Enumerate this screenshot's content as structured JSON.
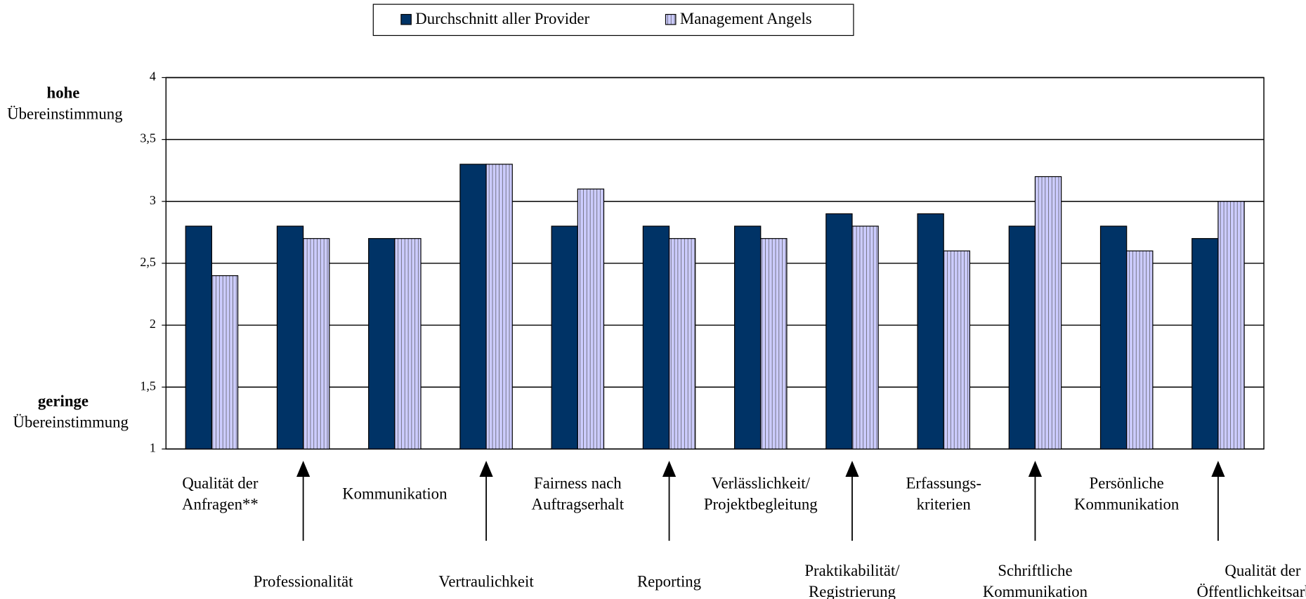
{
  "chart_data": {
    "type": "bar",
    "axis_annotations": [
      [
        "hohe",
        "Übereinstimmung"
      ],
      [
        "geringe",
        "Übereinstimmung"
      ]
    ],
    "categories": [
      "Qualität der\nAnfragen**",
      "Professionalität",
      "Kommunikation",
      "Vertraulichkeit",
      "Fairness nach\nAuftragserhalt",
      "Reporting",
      "Verlässlichkeit/\nProjektbegleitung",
      "Praktikabilität/\nRegistrierung",
      "Erfassungs-\nkriterien",
      "Schriftliche\nKommunikation",
      "Persönliche\nKommunikation",
      "Qualität der\nÖffentlichkeitsarbeit"
    ],
    "series": [
      {
        "name": "Durchschnitt aller Provider",
        "color": "#003366",
        "values": [
          2.8,
          2.8,
          2.7,
          3.3,
          2.8,
          2.8,
          2.8,
          2.9,
          2.9,
          2.8,
          2.8,
          2.7
        ]
      },
      {
        "name": "Management Angels",
        "color": "#ccccff",
        "values": [
          2.4,
          2.7,
          2.7,
          3.3,
          3.1,
          2.7,
          2.7,
          2.8,
          2.6,
          3.2,
          2.6,
          3.0
        ]
      }
    ],
    "ylim": [
      1,
      4
    ],
    "yticks": [
      1,
      {
        "value": 1.5,
        "label": "1,5"
      },
      2,
      {
        "value": 2.5,
        "label": "2,5"
      },
      3,
      {
        "value": 3.5,
        "label": "3,5"
      },
      4
    ],
    "grid": true
  }
}
